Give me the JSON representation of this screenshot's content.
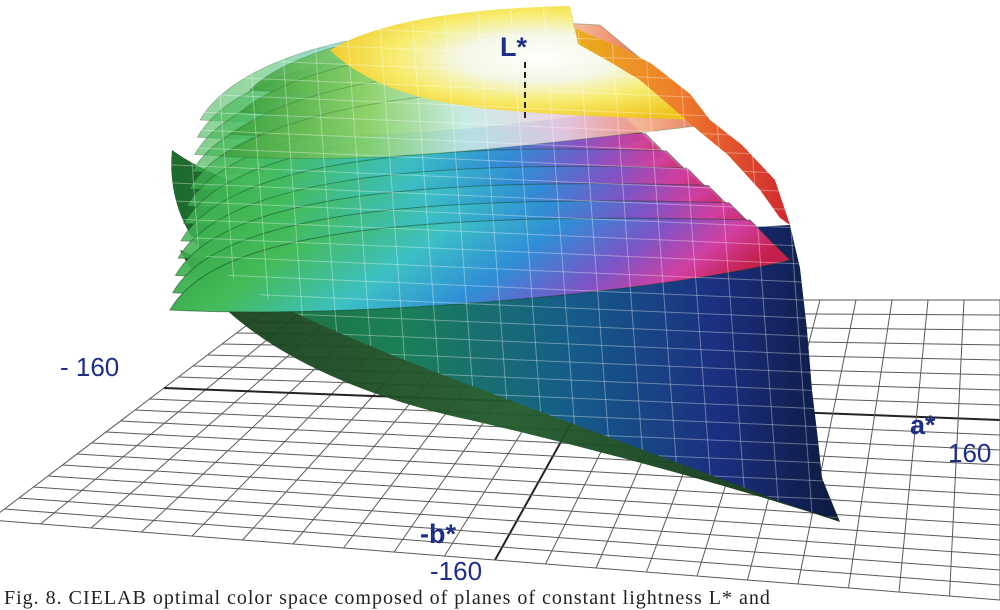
{
  "figure": {
    "axes": {
      "l_label": "L*",
      "a_label": "a*",
      "b_label": "-b*",
      "tick_neg_a": "- 160",
      "tick_pos_a": "160",
      "tick_neg_b": "-160"
    },
    "caption": "Fig. 8.  CIELAB optimal color space  composed of planes of constant lightness L* and"
  }
}
